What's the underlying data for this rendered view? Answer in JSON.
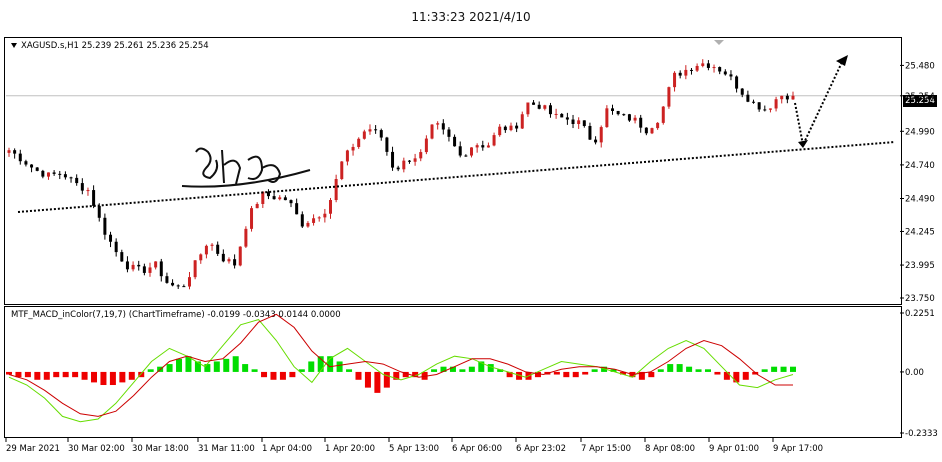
{
  "timestamp": "11:33:23 2021/4/10",
  "chart_data": [
    {
      "type": "candlestick",
      "title": "XAGUSD.s,H1",
      "ohlc_header": "25.239 25.261 25.236 25.254",
      "ylim": [
        23.75,
        25.55
      ],
      "y_ticks": [
        "25.480",
        "25.254",
        "24.990",
        "24.740",
        "24.490",
        "24.245",
        "23.995",
        "23.750"
      ],
      "last_price": "25.254",
      "x_ticks": [
        "29 Mar 2021",
        "30 Mar 02:00",
        "30 Mar 18:00",
        "31 Mar 11:00",
        "1 Apr 04:00",
        "1 Apr 20:00",
        "5 Apr 13:00",
        "6 Apr 06:00",
        "6 Apr 23:02",
        "7 Apr 15:00",
        "8 Apr 08:00",
        "9 Apr 01:00",
        "9 Apr 17:00"
      ],
      "close_path": [
        24.85,
        24.78,
        24.7,
        24.66,
        24.68,
        24.6,
        24.55,
        24.28,
        24.1,
        23.98,
        23.95,
        24.0,
        23.85,
        23.82,
        24.0,
        24.18,
        24.05,
        24.0,
        24.35,
        24.52,
        24.5,
        24.48,
        24.3,
        24.35,
        24.42,
        24.75,
        24.9,
        25.02,
        24.95,
        24.7,
        24.78,
        24.82,
        25.05,
        24.95,
        24.8,
        24.9,
        24.88,
        25.02,
        25.0,
        25.2,
        25.18,
        25.1,
        25.08,
        25.05,
        24.9,
        25.15,
        25.1,
        25.08,
        25.0,
        25.1,
        25.4,
        25.45,
        25.5,
        25.48,
        25.42,
        25.3,
        25.2,
        25.15,
        25.26,
        25.254
      ],
      "colors": {
        "up": "#cc2222",
        "down": "#000000",
        "trendline": "#000000",
        "last_price_line": "#c0c0c0"
      }
    },
    {
      "type": "bar",
      "title": "MTF_MACD_inColor(7,19,7) (ChartTimeframe) -0.0199 -0.0343 0.0144 0.0000",
      "ylim": [
        -0.2333,
        0.2251
      ],
      "y_ticks": [
        "0.2251",
        "0.00",
        "-0.2333"
      ],
      "histogram": [
        -0.01,
        -0.02,
        -0.02,
        -0.03,
        -0.03,
        -0.02,
        -0.02,
        -0.02,
        -0.03,
        -0.04,
        -0.05,
        -0.05,
        -0.04,
        -0.03,
        -0.02,
        0.01,
        0.02,
        0.03,
        0.05,
        0.06,
        0.04,
        0.03,
        0.04,
        0.05,
        0.06,
        0.03,
        0.01,
        -0.02,
        -0.03,
        -0.03,
        -0.02,
        0.01,
        0.04,
        0.06,
        0.06,
        0.04,
        0.01,
        -0.03,
        -0.06,
        -0.08,
        -0.06,
        -0.03,
        -0.02,
        -0.02,
        -0.03,
        0.01,
        0.02,
        0.02,
        0.01,
        0.02,
        0.04,
        0.03,
        0.01,
        -0.02,
        -0.03,
        -0.03,
        -0.02,
        -0.01,
        -0.01,
        -0.02,
        -0.02,
        -0.01,
        0.01,
        0.02,
        0.01,
        -0.01,
        -0.02,
        -0.03,
        -0.02,
        0.01,
        0.03,
        0.03,
        0.02,
        0.01,
        0.01,
        -0.01,
        -0.03,
        -0.04,
        -0.03,
        -0.01,
        0.01,
        0.02,
        0.02,
        0.02
      ],
      "series": [
        {
          "values": [
            -0.02,
            -0.05,
            -0.1,
            -0.17,
            -0.19,
            -0.18,
            -0.12,
            -0.04,
            0.04,
            0.09,
            0.06,
            0.02,
            0.1,
            0.18,
            0.2,
            0.12,
            0.02,
            -0.04,
            0.05,
            0.09,
            0.04,
            -0.01,
            -0.03,
            -0.01,
            0.03,
            0.06,
            0.05,
            0.02,
            0.0,
            -0.02,
            0.01,
            0.04,
            0.03,
            0.02,
            0.0,
            -0.02,
            0.04,
            0.09,
            0.12,
            0.09,
            0.02,
            -0.05,
            -0.06,
            -0.03,
            -0.01
          ]
        },
        {
          "values": [
            -0.01,
            -0.03,
            -0.07,
            -0.12,
            -0.16,
            -0.17,
            -0.15,
            -0.09,
            -0.02,
            0.04,
            0.06,
            0.04,
            0.05,
            0.11,
            0.19,
            0.22,
            0.17,
            0.08,
            0.02,
            0.03,
            0.04,
            0.03,
            0.0,
            -0.02,
            -0.01,
            0.02,
            0.05,
            0.05,
            0.03,
            0.0,
            -0.01,
            0.01,
            0.02,
            0.02,
            0.01,
            -0.01,
            0.0,
            0.04,
            0.09,
            0.12,
            0.1,
            0.05,
            -0.01,
            -0.05,
            -0.05
          ]
        }
      ],
      "colors": {
        "hist_up": "#00dd00",
        "hist_down": "#ee0000",
        "line_fast": "#66dd00",
        "line_slow": "#cc0000"
      }
    }
  ]
}
